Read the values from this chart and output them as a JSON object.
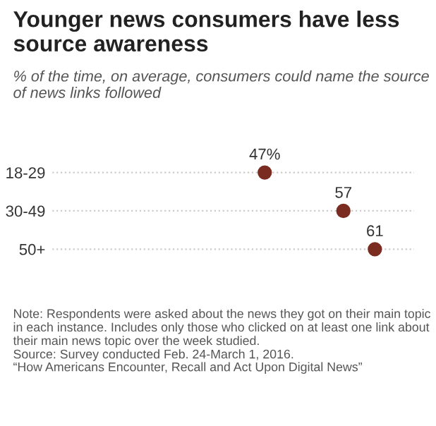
{
  "chart_data": {
    "type": "scatter",
    "orientation": "horizontal",
    "title": "Younger news consumers have less source awareness",
    "subtitle": "% of the time, on average, consumers could name the source of news links followed",
    "categories": [
      "18-29",
      "30-49",
      "50+"
    ],
    "values": [
      47,
      57,
      61
    ],
    "value_labels": [
      "47%",
      "57",
      "61"
    ],
    "color": "#7b2c20",
    "xlim": [
      20,
      66
    ],
    "tick_labels": "y",
    "grid": "y",
    "marker": "circle",
    "annotations": [
      "Note: Respondents were asked about the news they got on their main topic in each instance. Includes only those who clicked on at least one link about their main news topic over the week studied.",
      "Source: Survey conducted Feb. 24-March 1, 2016.",
      "“How Americans Encounter, Recall and Act Upon Digital News”"
    ]
  }
}
